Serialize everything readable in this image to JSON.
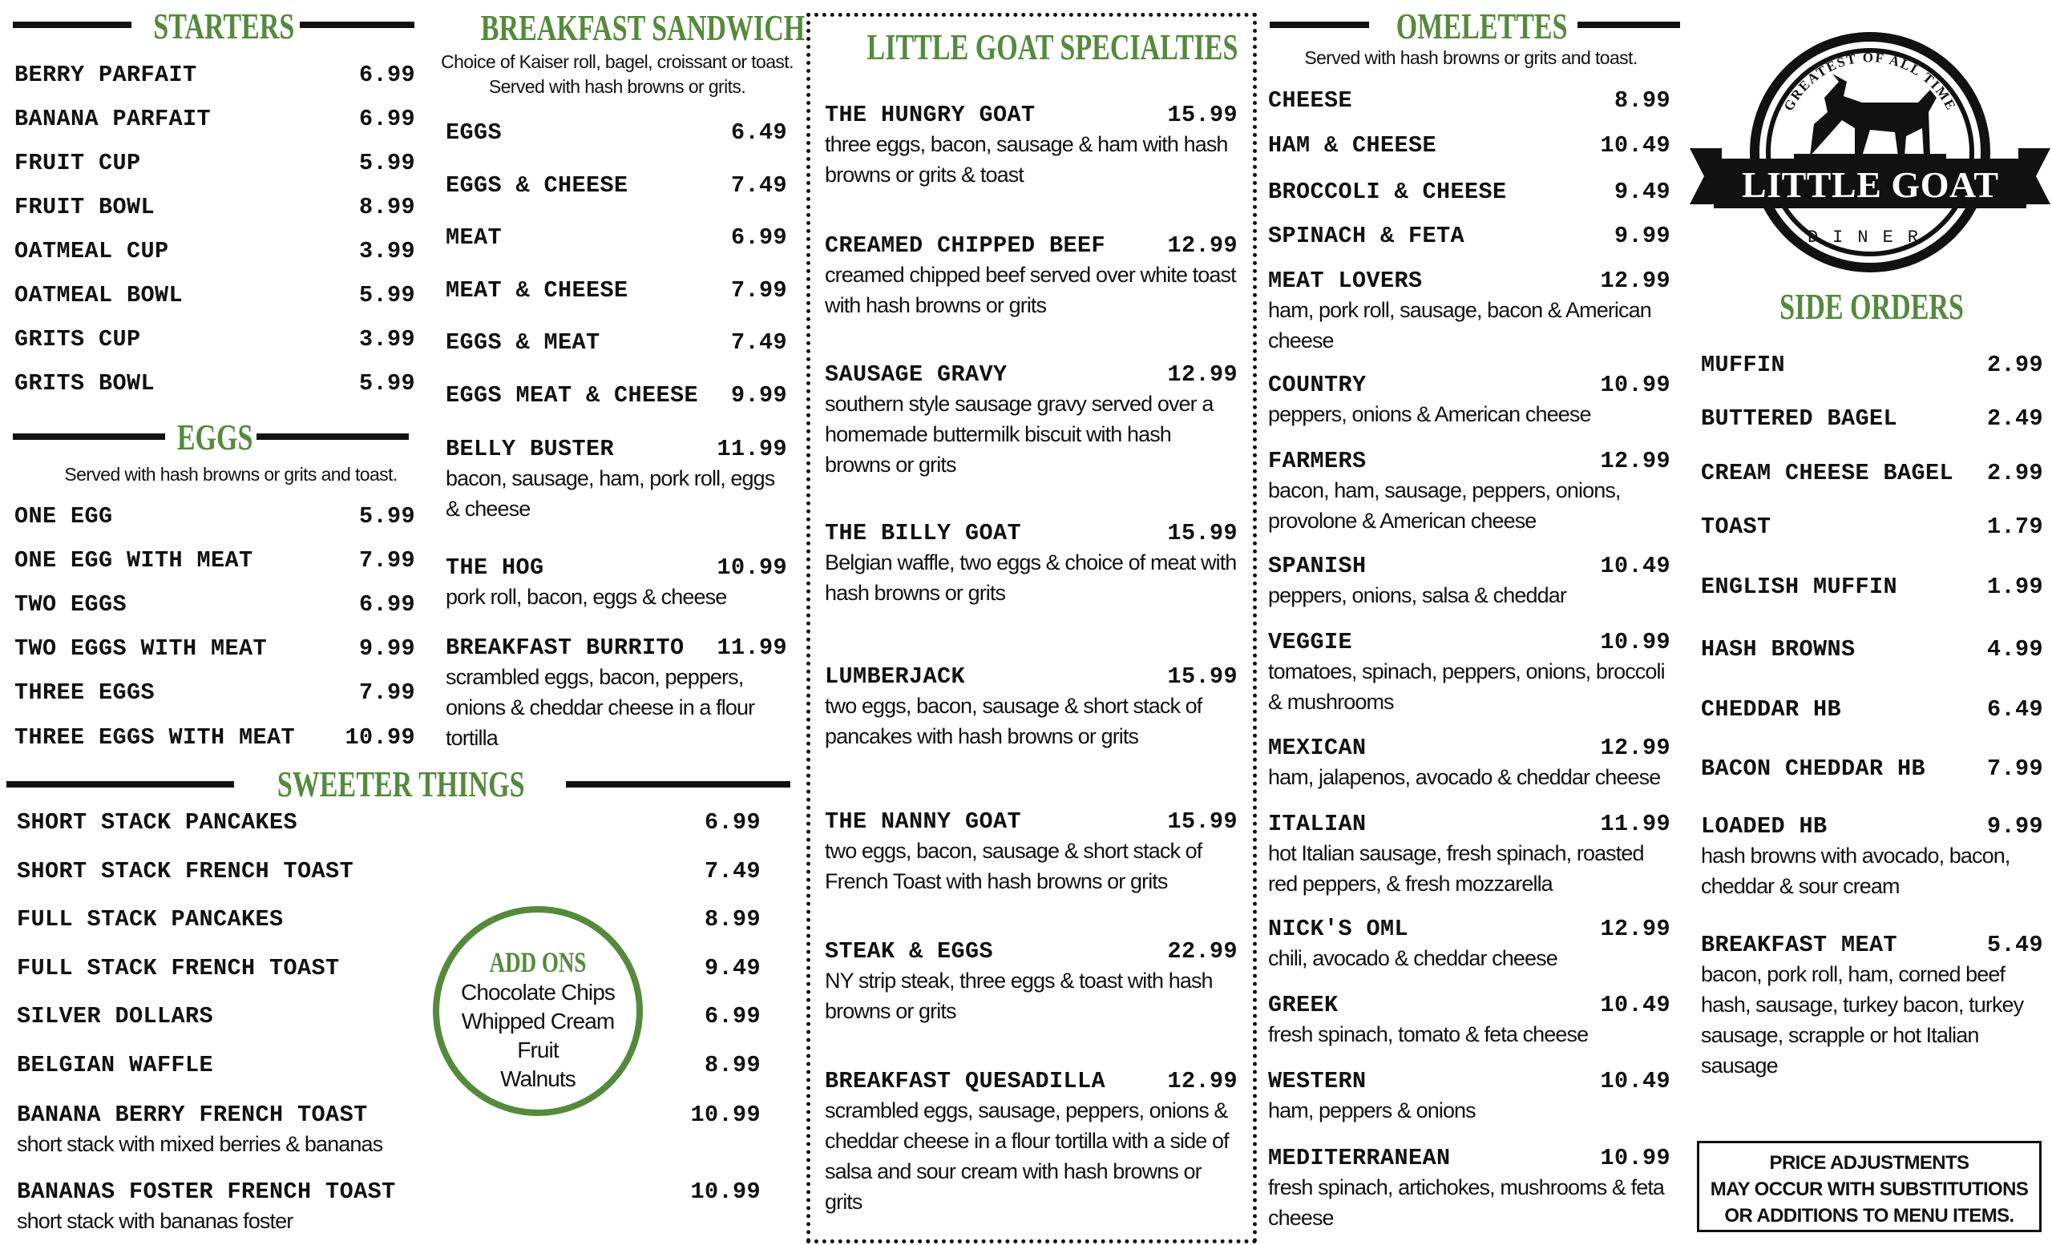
{
  "brand": {
    "name": "LITTLE GOAT",
    "sub": "DINER",
    "tagline": "GREATEST OF ALL TIME",
    "accent": "#548a3c"
  },
  "starters": {
    "title": "STARTERS",
    "items": [
      {
        "name": "BERRY PARFAIT",
        "price": "6.99"
      },
      {
        "name": "BANANA PARFAIT",
        "price": "6.99"
      },
      {
        "name": "FRUIT CUP",
        "price": "5.99"
      },
      {
        "name": "FRUIT BOWL",
        "price": "8.99"
      },
      {
        "name": "OATMEAL CUP",
        "price": "3.99"
      },
      {
        "name": "OATMEAL BOWL",
        "price": "5.99"
      },
      {
        "name": "GRITS CUP",
        "price": "3.99"
      },
      {
        "name": "GRITS BOWL",
        "price": "5.99"
      }
    ]
  },
  "eggs": {
    "title": "EGGS",
    "subtitle": "Served with hash browns or grits and toast.",
    "items": [
      {
        "name": "ONE EGG",
        "price": "5.99"
      },
      {
        "name": "ONE EGG WITH MEAT",
        "price": "7.99"
      },
      {
        "name": "TWO EGGS",
        "price": "6.99"
      },
      {
        "name": "TWO EGGS WITH MEAT",
        "price": "9.99"
      },
      {
        "name": "THREE EGGS",
        "price": "7.99"
      },
      {
        "name": "THREE EGGS WITH MEAT",
        "price": "10.99"
      }
    ]
  },
  "sweeter": {
    "title": "SWEETER THINGS",
    "items": [
      {
        "name": "SHORT STACK PANCAKES",
        "price": "6.99"
      },
      {
        "name": "SHORT STACK FRENCH TOAST",
        "price": "7.49"
      },
      {
        "name": "FULL STACK PANCAKES",
        "price": "8.99"
      },
      {
        "name": "FULL STACK FRENCH TOAST",
        "price": "9.49"
      },
      {
        "name": "SILVER DOLLARS",
        "price": "6.99"
      },
      {
        "name": "BELGIAN WAFFLE",
        "price": "8.99"
      },
      {
        "name": "BANANA BERRY FRENCH TOAST",
        "price": "10.99",
        "desc": "short stack with mixed berries & bananas"
      },
      {
        "name": "BANANAS FOSTER FRENCH TOAST",
        "price": "10.99",
        "desc": "short stack with bananas foster"
      }
    ]
  },
  "addons": {
    "title": "ADD ONS",
    "items": [
      "Chocolate Chips",
      "Whipped Cream",
      "Fruit",
      "Walnuts"
    ]
  },
  "sandwich": {
    "title": "BREAKFAST SANDWICH",
    "subtitle1": "Choice of Kaiser roll, bagel, croissant or toast.",
    "subtitle2": "Served with hash browns or grits.",
    "items": [
      {
        "name": "EGGS",
        "price": "6.49"
      },
      {
        "name": "EGGS & CHEESE",
        "price": "7.49"
      },
      {
        "name": "MEAT",
        "price": "6.99"
      },
      {
        "name": "MEAT & CHEESE",
        "price": "7.99"
      },
      {
        "name": "EGGS & MEAT",
        "price": "7.49"
      },
      {
        "name": "EGGS MEAT & CHEESE",
        "price": "9.99"
      },
      {
        "name": "BELLY BUSTER",
        "price": "11.99",
        "desc": "bacon, sausage, ham, pork roll, eggs & cheese"
      },
      {
        "name": "THE HOG",
        "price": "10.99",
        "desc": "pork roll, bacon, eggs & cheese"
      },
      {
        "name": "BREAKFAST BURRITO",
        "price": "11.99",
        "desc": "scrambled eggs, bacon, peppers, onions & cheddar cheese in a flour tortilla"
      }
    ]
  },
  "specialties": {
    "title": "LITTLE GOAT SPECIALTIES",
    "items": [
      {
        "name": "THE HUNGRY GOAT",
        "price": "15.99",
        "desc": "three eggs, bacon, sausage & ham with hash browns or grits & toast"
      },
      {
        "name": "CREAMED CHIPPED BEEF",
        "price": "12.99",
        "desc": "creamed chipped beef served over white toast with hash browns or grits"
      },
      {
        "name": "SAUSAGE GRAVY",
        "price": "12.99",
        "desc": "southern style sausage gravy served over a homemade buttermilk biscuit with hash browns or grits"
      },
      {
        "name": "THE BILLY GOAT",
        "price": "15.99",
        "desc": "Belgian waffle, two eggs & choice of meat with hash browns or grits"
      },
      {
        "name": "LUMBERJACK",
        "price": "15.99",
        "desc": "two eggs, bacon, sausage & short stack of pancakes with hash browns or grits"
      },
      {
        "name": "THE NANNY GOAT",
        "price": "15.99",
        "desc": "two eggs, bacon, sausage & short stack of French Toast with hash browns or grits"
      },
      {
        "name": "STEAK & EGGS",
        "price": "22.99",
        "desc": "NY strip steak, three eggs & toast with hash browns or grits"
      },
      {
        "name": "BREAKFAST QUESADILLA",
        "price": "12.99",
        "desc": "scrambled eggs, sausage, peppers, onions & cheddar cheese in a flour tortilla with a side of salsa and sour cream with hash browns or grits"
      }
    ]
  },
  "omelettes": {
    "title": "OMELETTES",
    "subtitle": "Served with hash browns or grits and toast.",
    "items": [
      {
        "name": "CHEESE",
        "price": "8.99"
      },
      {
        "name": "HAM & CHEESE",
        "price": "10.49"
      },
      {
        "name": "BROCCOLI & CHEESE",
        "price": "9.49"
      },
      {
        "name": "SPINACH & FETA",
        "price": "9.99"
      },
      {
        "name": "MEAT LOVERS",
        "price": "12.99",
        "desc": "ham, pork roll, sausage, bacon & American cheese"
      },
      {
        "name": "COUNTRY",
        "price": "10.99",
        "desc": "peppers, onions & American cheese"
      },
      {
        "name": "FARMERS",
        "price": "12.99",
        "desc": "bacon, ham, sausage, peppers, onions, provolone & American cheese"
      },
      {
        "name": "SPANISH",
        "price": "10.49",
        "desc": "peppers, onions, salsa & cheddar"
      },
      {
        "name": "VEGGIE",
        "price": "10.99",
        "desc": "tomatoes, spinach, peppers, onions, broccoli & mushrooms"
      },
      {
        "name": "MEXICAN",
        "price": "12.99",
        "desc": "ham, jalapenos, avocado & cheddar cheese"
      },
      {
        "name": "ITALIAN",
        "price": "11.99",
        "desc": "hot Italian sausage, fresh spinach, roasted red peppers, & fresh mozzarella"
      },
      {
        "name": "NICK'S OML",
        "price": "12.99",
        "desc": "chili, avocado & cheddar cheese"
      },
      {
        "name": "GREEK",
        "price": "10.49",
        "desc": "fresh spinach, tomato & feta cheese"
      },
      {
        "name": "WESTERN",
        "price": "10.49",
        "desc": "ham, peppers & onions"
      },
      {
        "name": "MEDITERRANEAN",
        "price": "10.99",
        "desc": "fresh spinach, artichokes, mushrooms & feta cheese"
      }
    ]
  },
  "sides": {
    "title": "SIDE ORDERS",
    "items": [
      {
        "name": "MUFFIN",
        "price": "2.99"
      },
      {
        "name": "BUTTERED BAGEL",
        "price": "2.49"
      },
      {
        "name": "CREAM CHEESE BAGEL",
        "price": "2.99"
      },
      {
        "name": "TOAST",
        "price": "1.79"
      },
      {
        "name": "ENGLISH MUFFIN",
        "price": "1.99"
      },
      {
        "name": "HASH BROWNS",
        "price": "4.99"
      },
      {
        "name": "CHEDDAR HB",
        "price": "6.49"
      },
      {
        "name": "BACON CHEDDAR HB",
        "price": "7.99"
      },
      {
        "name": "LOADED HB",
        "price": "9.99",
        "desc": "hash browns with avocado, bacon, cheddar & sour cream"
      },
      {
        "name": "BREAKFAST MEAT",
        "price": "5.49",
        "desc": "bacon, pork roll, ham, corned beef hash, sausage, turkey bacon, turkey sausage, scrapple or hot Italian sausage"
      }
    ]
  },
  "notice": {
    "line1": "PRICE ADJUSTMENTS",
    "line2": "MAY OCCUR WITH SUBSTITUTIONS",
    "line3": "OR ADDITIONS TO MENU ITEMS."
  }
}
